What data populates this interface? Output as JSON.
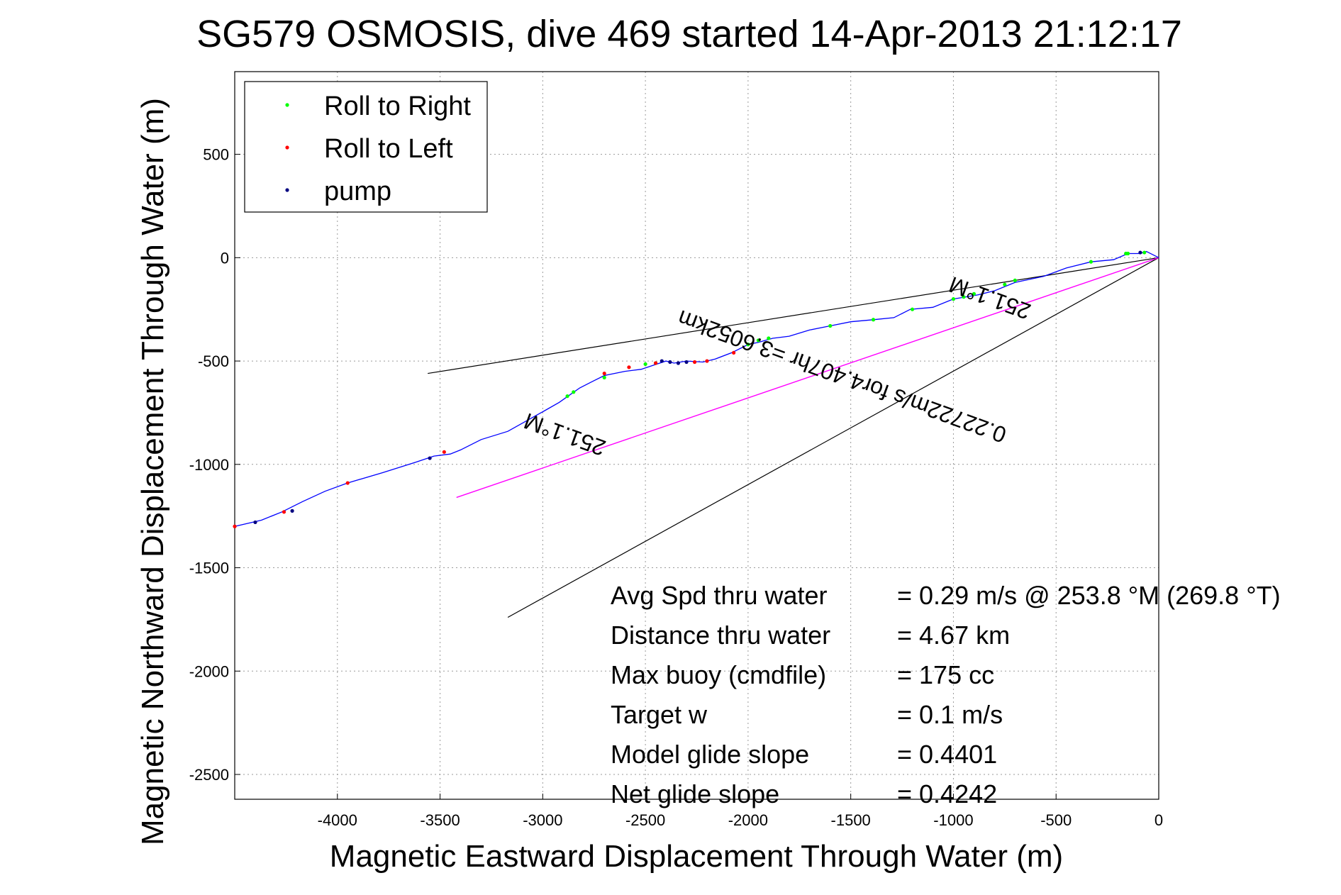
{
  "chart_data": {
    "type": "line",
    "title": "SG579 OSMOSIS, dive 469 started 14-Apr-2013 21:12:17",
    "xlabel": "Magnetic Eastward Displacement Through Water (m)",
    "ylabel": "Magnetic Northward Displacement Through Water (m)",
    "xlim": [
      -4500,
      0
    ],
    "ylim": [
      -2620,
      900
    ],
    "xticks": [
      -4000,
      -3500,
      -3000,
      -2500,
      -2000,
      -1500,
      -1000,
      -500,
      0
    ],
    "yticks": [
      500,
      0,
      -500,
      -1000,
      -1500,
      -2000,
      -2500
    ],
    "grid": true,
    "legend_position": "top-left",
    "legend": [
      {
        "label": "Roll to Right",
        "color": "#00ff00"
      },
      {
        "label": "Roll to Left",
        "color": "#ff0000"
      },
      {
        "label": "pump",
        "color": "#000080"
      }
    ],
    "track": {
      "color": "#0000ff",
      "x": [
        0,
        -60,
        -90,
        -150,
        -220,
        -330,
        -450,
        -560,
        -700,
        -800,
        -880,
        -1000,
        -1100,
        -1210,
        -1290,
        -1390,
        -1500,
        -1600,
        -1700,
        -1800,
        -1880,
        -1950,
        -2000,
        -2080,
        -2160,
        -2220,
        -2300,
        -2360,
        -2400,
        -2460,
        -2520,
        -2600,
        -2700,
        -2760,
        -2820,
        -2870,
        -2920,
        -2990,
        -3080,
        -3170,
        -3300,
        -3400,
        -3450,
        -3530,
        -3620,
        -3780,
        -3950,
        -4060,
        -4170,
        -4270,
        -4370,
        -4500
      ],
      "y": [
        0,
        30,
        20,
        20,
        -10,
        -20,
        -50,
        -90,
        -120,
        -160,
        -180,
        -200,
        -240,
        -250,
        -290,
        -300,
        -310,
        -330,
        -350,
        -380,
        -390,
        -410,
        -420,
        -460,
        -490,
        -505,
        -500,
        -510,
        -500,
        -520,
        -540,
        -550,
        -570,
        -600,
        -630,
        -665,
        -700,
        -740,
        -790,
        -840,
        -880,
        -930,
        -950,
        -960,
        -990,
        -1040,
        -1090,
        -1130,
        -1180,
        -1230,
        -1270,
        -1300
      ]
    },
    "roll_right_x": [
      -70,
      -150,
      -160,
      -330,
      -700,
      -750,
      -900,
      -950,
      -1000,
      -1200,
      -1390,
      -1600,
      -1900,
      -1950,
      -2000,
      -2450,
      -2500,
      -2700,
      -2850,
      -2880
    ],
    "roll_right_y": [
      25,
      20,
      20,
      -20,
      -110,
      -130,
      -175,
      -190,
      -200,
      -250,
      -300,
      -330,
      -390,
      -400,
      -420,
      -510,
      -515,
      -580,
      -650,
      -670
    ],
    "roll_left_x": [
      -2070,
      -2200,
      -2260,
      -2450,
      -2580,
      -2700,
      -3480,
      -3950,
      -4260,
      -4500
    ],
    "roll_left_y": [
      -460,
      -500,
      -505,
      -510,
      -530,
      -560,
      -940,
      -1090,
      -1230,
      -1300
    ],
    "pump_x": [
      -2300,
      -2340,
      -2380,
      -2420,
      -3550,
      -4220,
      -4400,
      -90
    ],
    "pump_y": [
      -505,
      -510,
      -505,
      -500,
      -970,
      -1225,
      -1280,
      25
    ],
    "black_lines": [
      {
        "x": [
          0,
          -3560
        ],
        "y": [
          0,
          -560
        ]
      },
      {
        "x": [
          0,
          -3170
        ],
        "y": [
          0,
          -1740
        ]
      }
    ],
    "magenta_line": {
      "color": "#ff00ff",
      "x": [
        0,
        -3420
      ],
      "y": [
        0,
        -1160
      ]
    },
    "rotated_labels": [
      {
        "text": "251.1°M",
        "x": -810,
        "y": -160,
        "angle": 200
      },
      {
        "text": "0.22722m/s for4.407hr =3.6052km",
        "x": -1530,
        "y": -540,
        "angle": 200
      },
      {
        "text": "251.1°M",
        "x": -2880,
        "y": -820,
        "angle": 200
      }
    ],
    "stats": [
      {
        "label": "Avg Spd thru water",
        "value": "=  0.29 m/s @ 253.8 °M (269.8 °T)"
      },
      {
        "label": "Distance thru water",
        "value": "=  4.67 km"
      },
      {
        "label": "Max buoy (cmdfile)",
        "value": "= 175 cc"
      },
      {
        "label": "Target w",
        "value": "= 0.1 m/s"
      },
      {
        "label": "Model glide slope",
        "value": "= 0.4401"
      },
      {
        "label": "Net glide slope",
        "value": "= 0.4242"
      }
    ]
  }
}
